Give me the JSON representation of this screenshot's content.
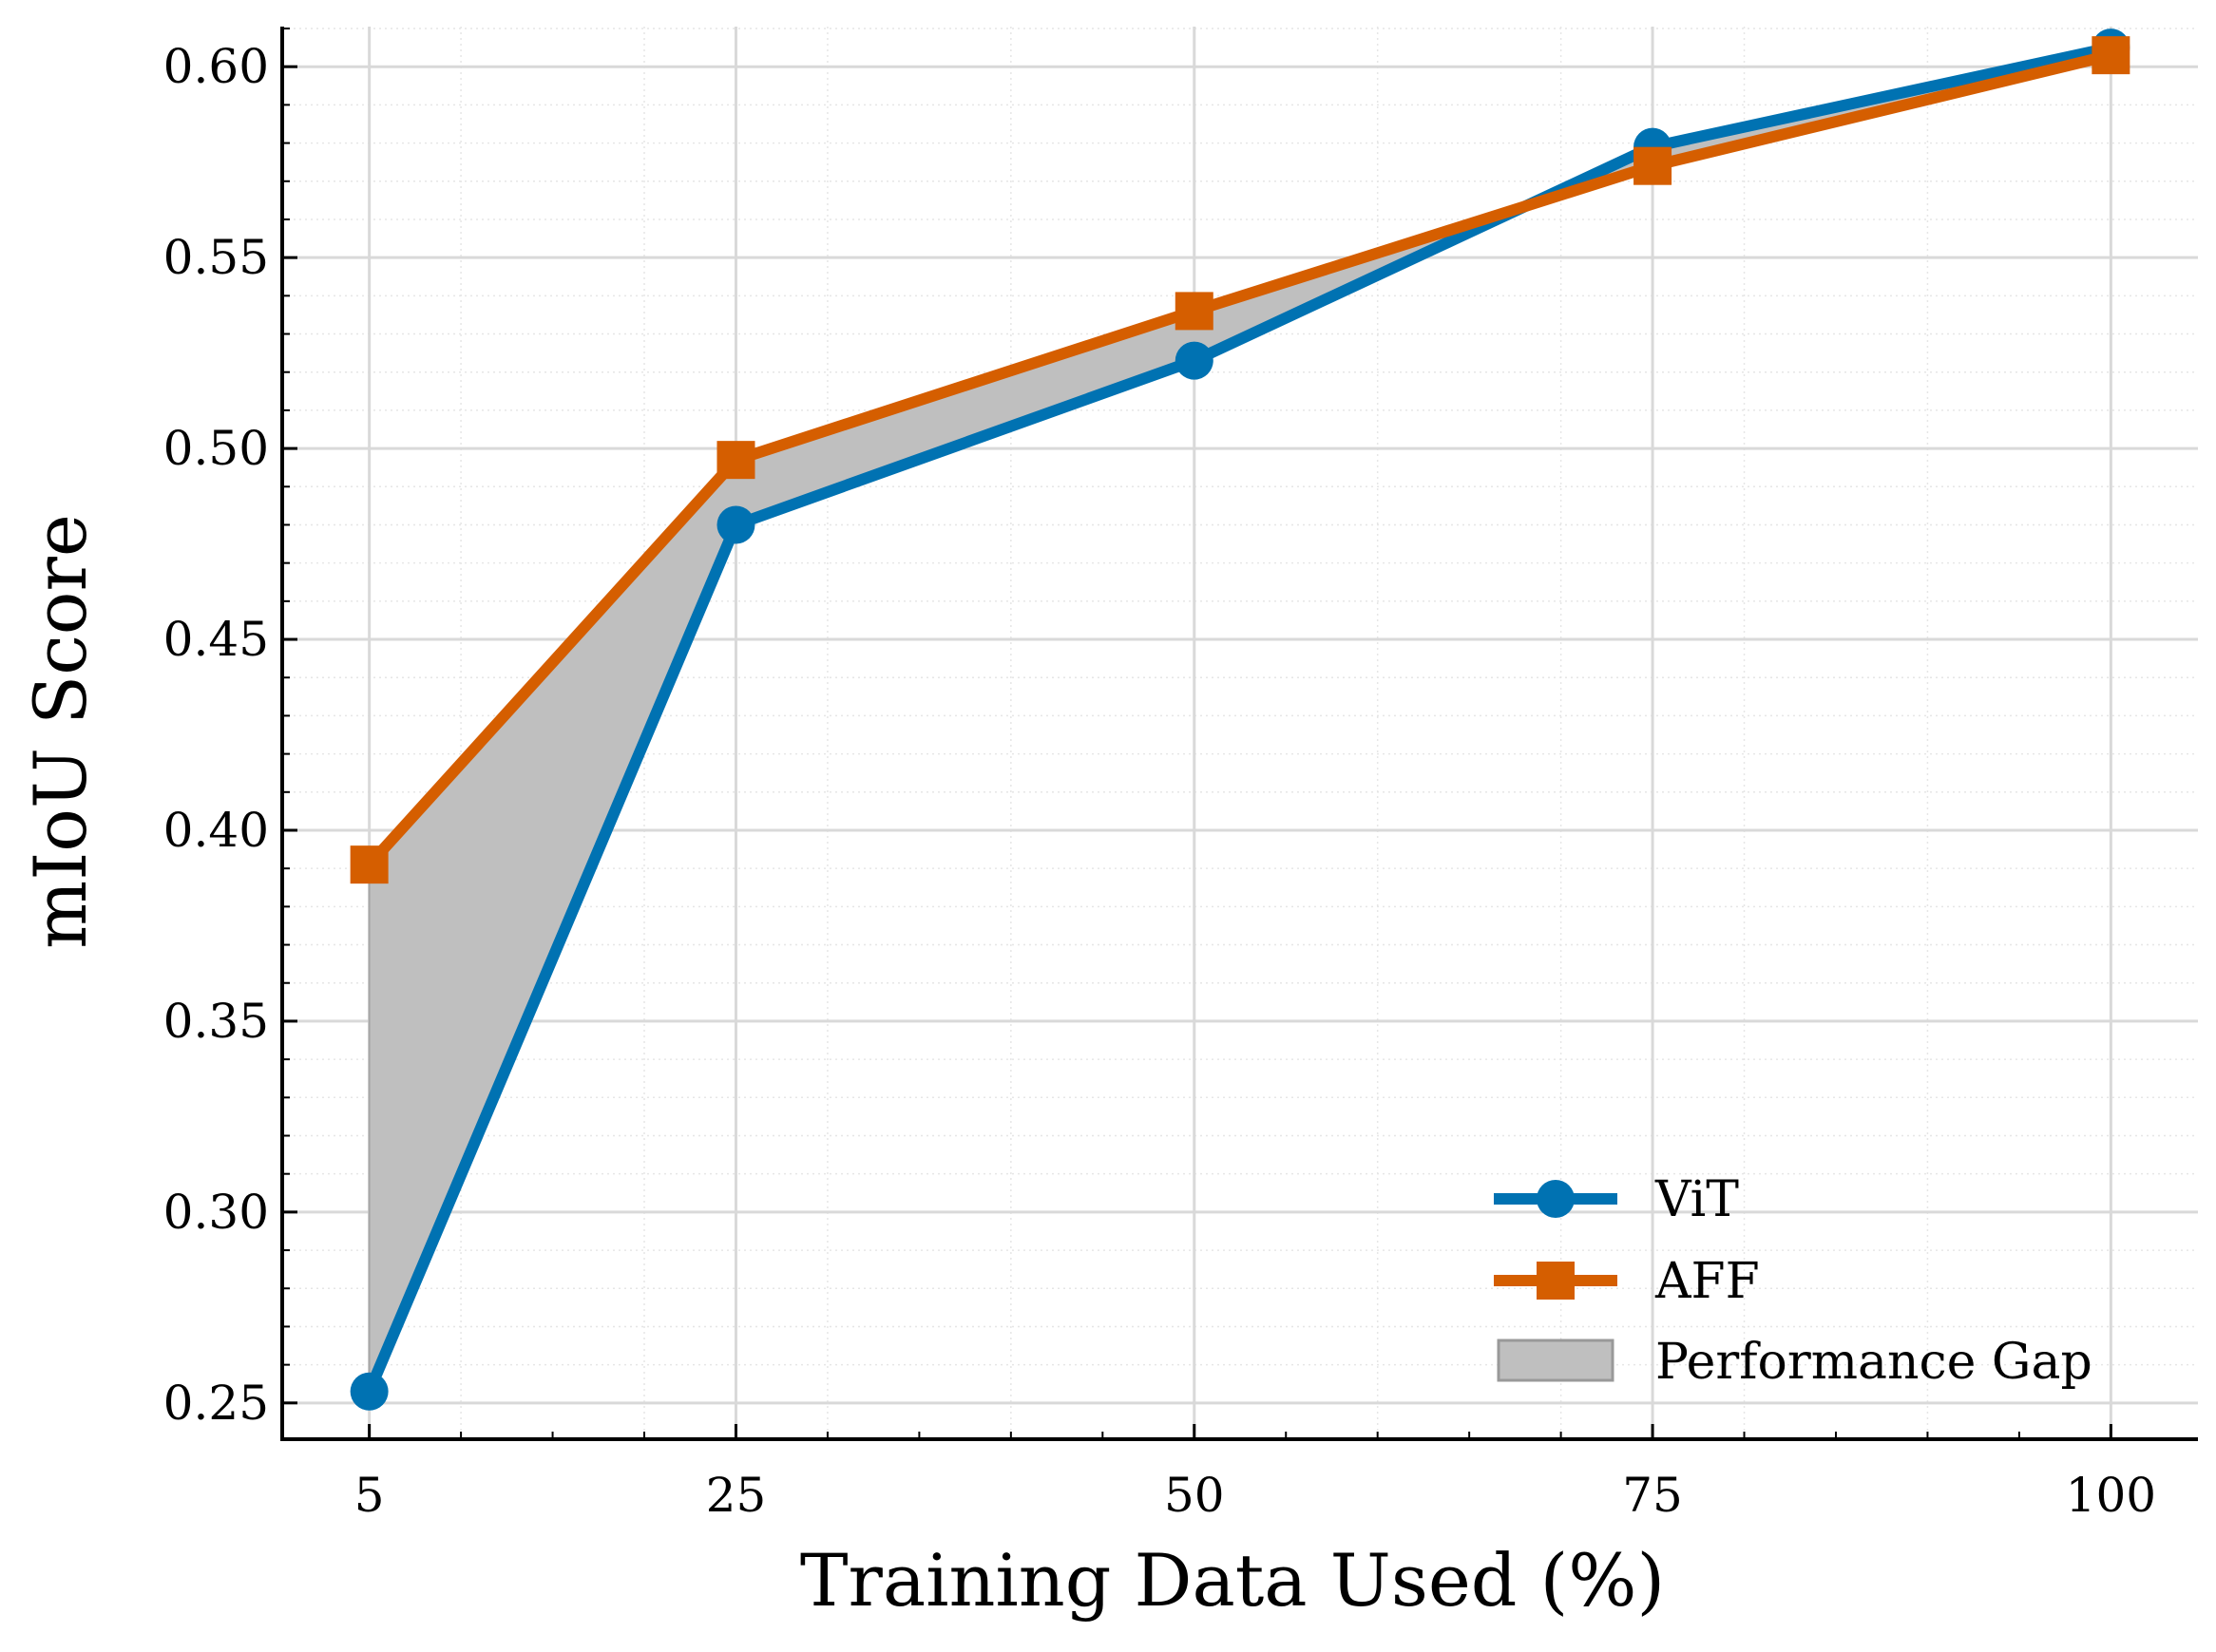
{
  "chart_data": {
    "type": "line",
    "title": "",
    "xlabel": "Training Data Used (%)",
    "ylabel": "mIoU Score",
    "x": [
      5,
      25,
      50,
      75,
      100
    ],
    "xticks": [
      5,
      25,
      50,
      75,
      100
    ],
    "xtick_labels": [
      "5",
      "25",
      "50",
      "75",
      "100"
    ],
    "yticks": [
      0.25,
      0.3,
      0.35,
      0.4,
      0.45,
      0.5,
      0.55,
      0.6
    ],
    "ytick_labels": [
      "0.25",
      "0.30",
      "0.35",
      "0.40",
      "0.45",
      "0.50",
      "0.55",
      "0.60"
    ],
    "xlim": [
      0.25,
      104.75
    ],
    "ylim": [
      0.2405,
      0.6105
    ],
    "grid": true,
    "legend_position": "lower-right",
    "series": [
      {
        "name": "ViT",
        "values": [
          0.253,
          0.48,
          0.523,
          0.579,
          0.605
        ],
        "color": "#0072B2",
        "marker": "circle"
      },
      {
        "name": "AFF",
        "values": [
          0.391,
          0.497,
          0.536,
          0.574,
          0.603
        ],
        "color": "#D55E00",
        "marker": "square"
      }
    ],
    "fill_between": {
      "name": "Performance Gap",
      "between": [
        "ViT",
        "AFF"
      ],
      "color": "#bfbfbf"
    }
  }
}
